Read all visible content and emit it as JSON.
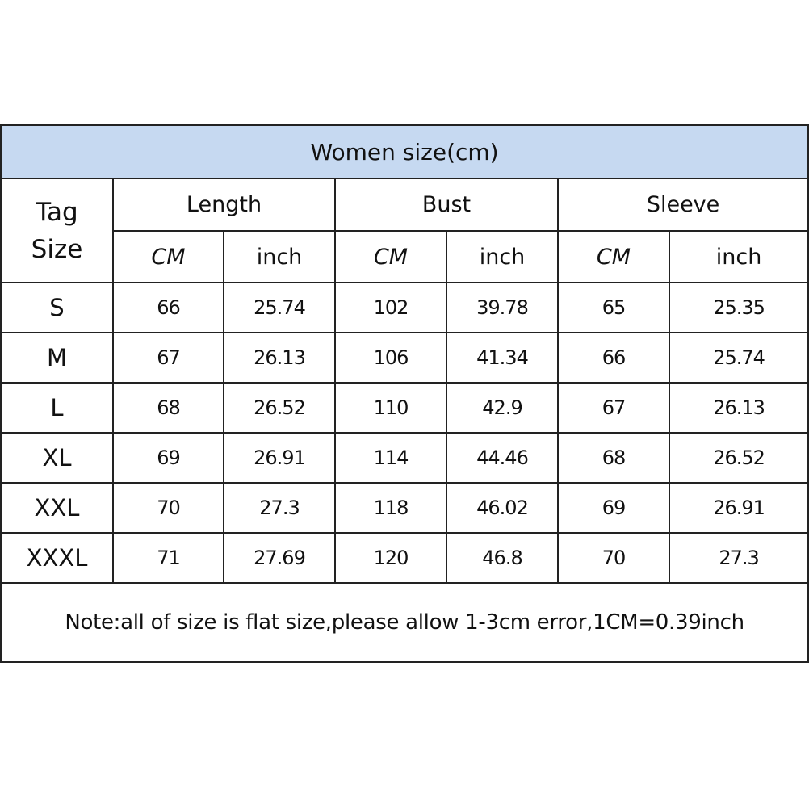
{
  "title": "Women size(cm)",
  "tag_size_label": [
    "Tag",
    "Size"
  ],
  "groups": [
    "Length",
    "Bust",
    "Sleeve"
  ],
  "units": [
    "CM",
    "inch",
    "CM",
    "inch",
    "CM",
    "inch"
  ],
  "rows": [
    [
      "S",
      "66",
      "25.74",
      "102",
      "39.78",
      "65",
      "25.35"
    ],
    [
      "M",
      "67",
      "26.13",
      "106",
      "41.34",
      "66",
      "25.74"
    ],
    [
      "L",
      "68",
      "26.52",
      "110",
      "42.9",
      "67",
      "26.13"
    ],
    [
      "XL",
      "69",
      "26.91",
      "114",
      "44.46",
      "68",
      "26.52"
    ],
    [
      "XXL",
      "70",
      "27.3",
      "118",
      "46.02",
      "69",
      "26.91"
    ],
    [
      "XXXL",
      "71",
      "27.69",
      "120",
      "46.8",
      "70",
      "27.3"
    ]
  ],
  "note": "Note:all of size is flat size,please allow 1-3cm error,1CM=0.39inch",
  "colors": {
    "title_bg": "#c6d9f1",
    "note_text": "#e8141c",
    "border": "#222222"
  }
}
